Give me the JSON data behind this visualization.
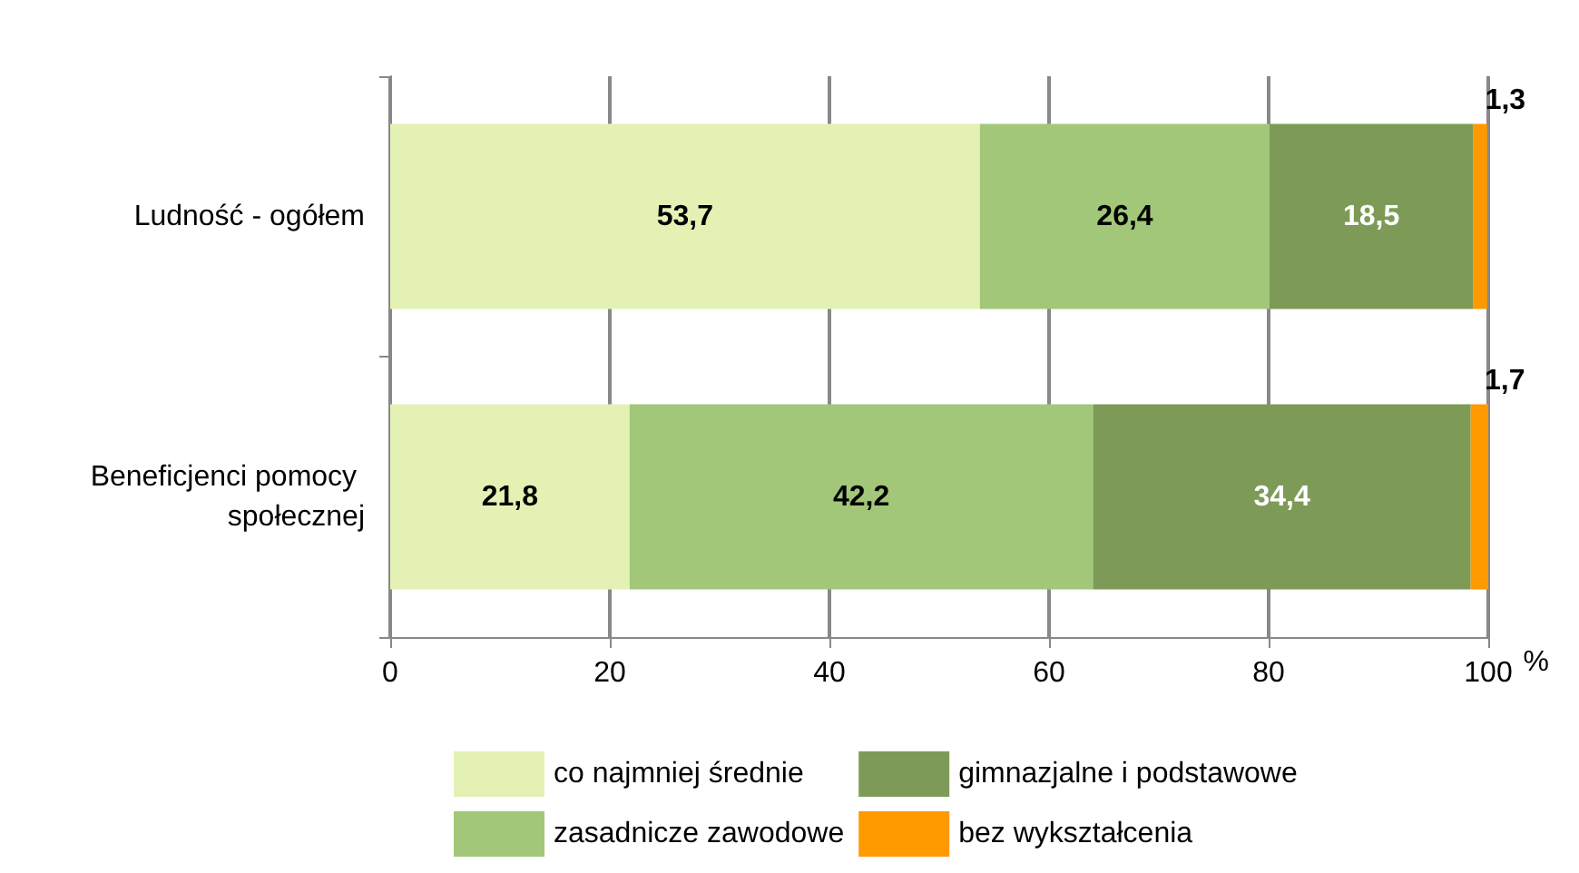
{
  "chart_data": {
    "type": "bar",
    "orientation": "horizontal",
    "stacked": true,
    "categories": [
      "Ludność - ogółem",
      "Beneficjenci pomocy społecznej"
    ],
    "series": [
      {
        "name": "co najmniej średnie",
        "color": "#e3f2b4",
        "values": [
          53.7,
          21.8
        ],
        "value_labels": [
          "53,7",
          "21,8"
        ]
      },
      {
        "name": "zasadnicze zawodowe",
        "color": "#a2c778",
        "values": [
          26.4,
          42.2
        ],
        "value_labels": [
          "26,4",
          "42,2"
        ]
      },
      {
        "name": "gimnazjalne i podstawowe",
        "color": "#7d9b57",
        "values": [
          18.5,
          34.4
        ],
        "value_labels": [
          "18,5",
          "34,4"
        ]
      },
      {
        "name": "bez wykształcenia",
        "color": "#ff9900",
        "values": [
          1.3,
          1.7
        ],
        "value_labels": [
          "1,3",
          "1,7"
        ]
      }
    ],
    "xlabel": "%",
    "xlim": [
      0,
      100
    ],
    "xticks": [
      0,
      20,
      40,
      60,
      80,
      100
    ],
    "grid": "x",
    "legend": "bottom"
  }
}
